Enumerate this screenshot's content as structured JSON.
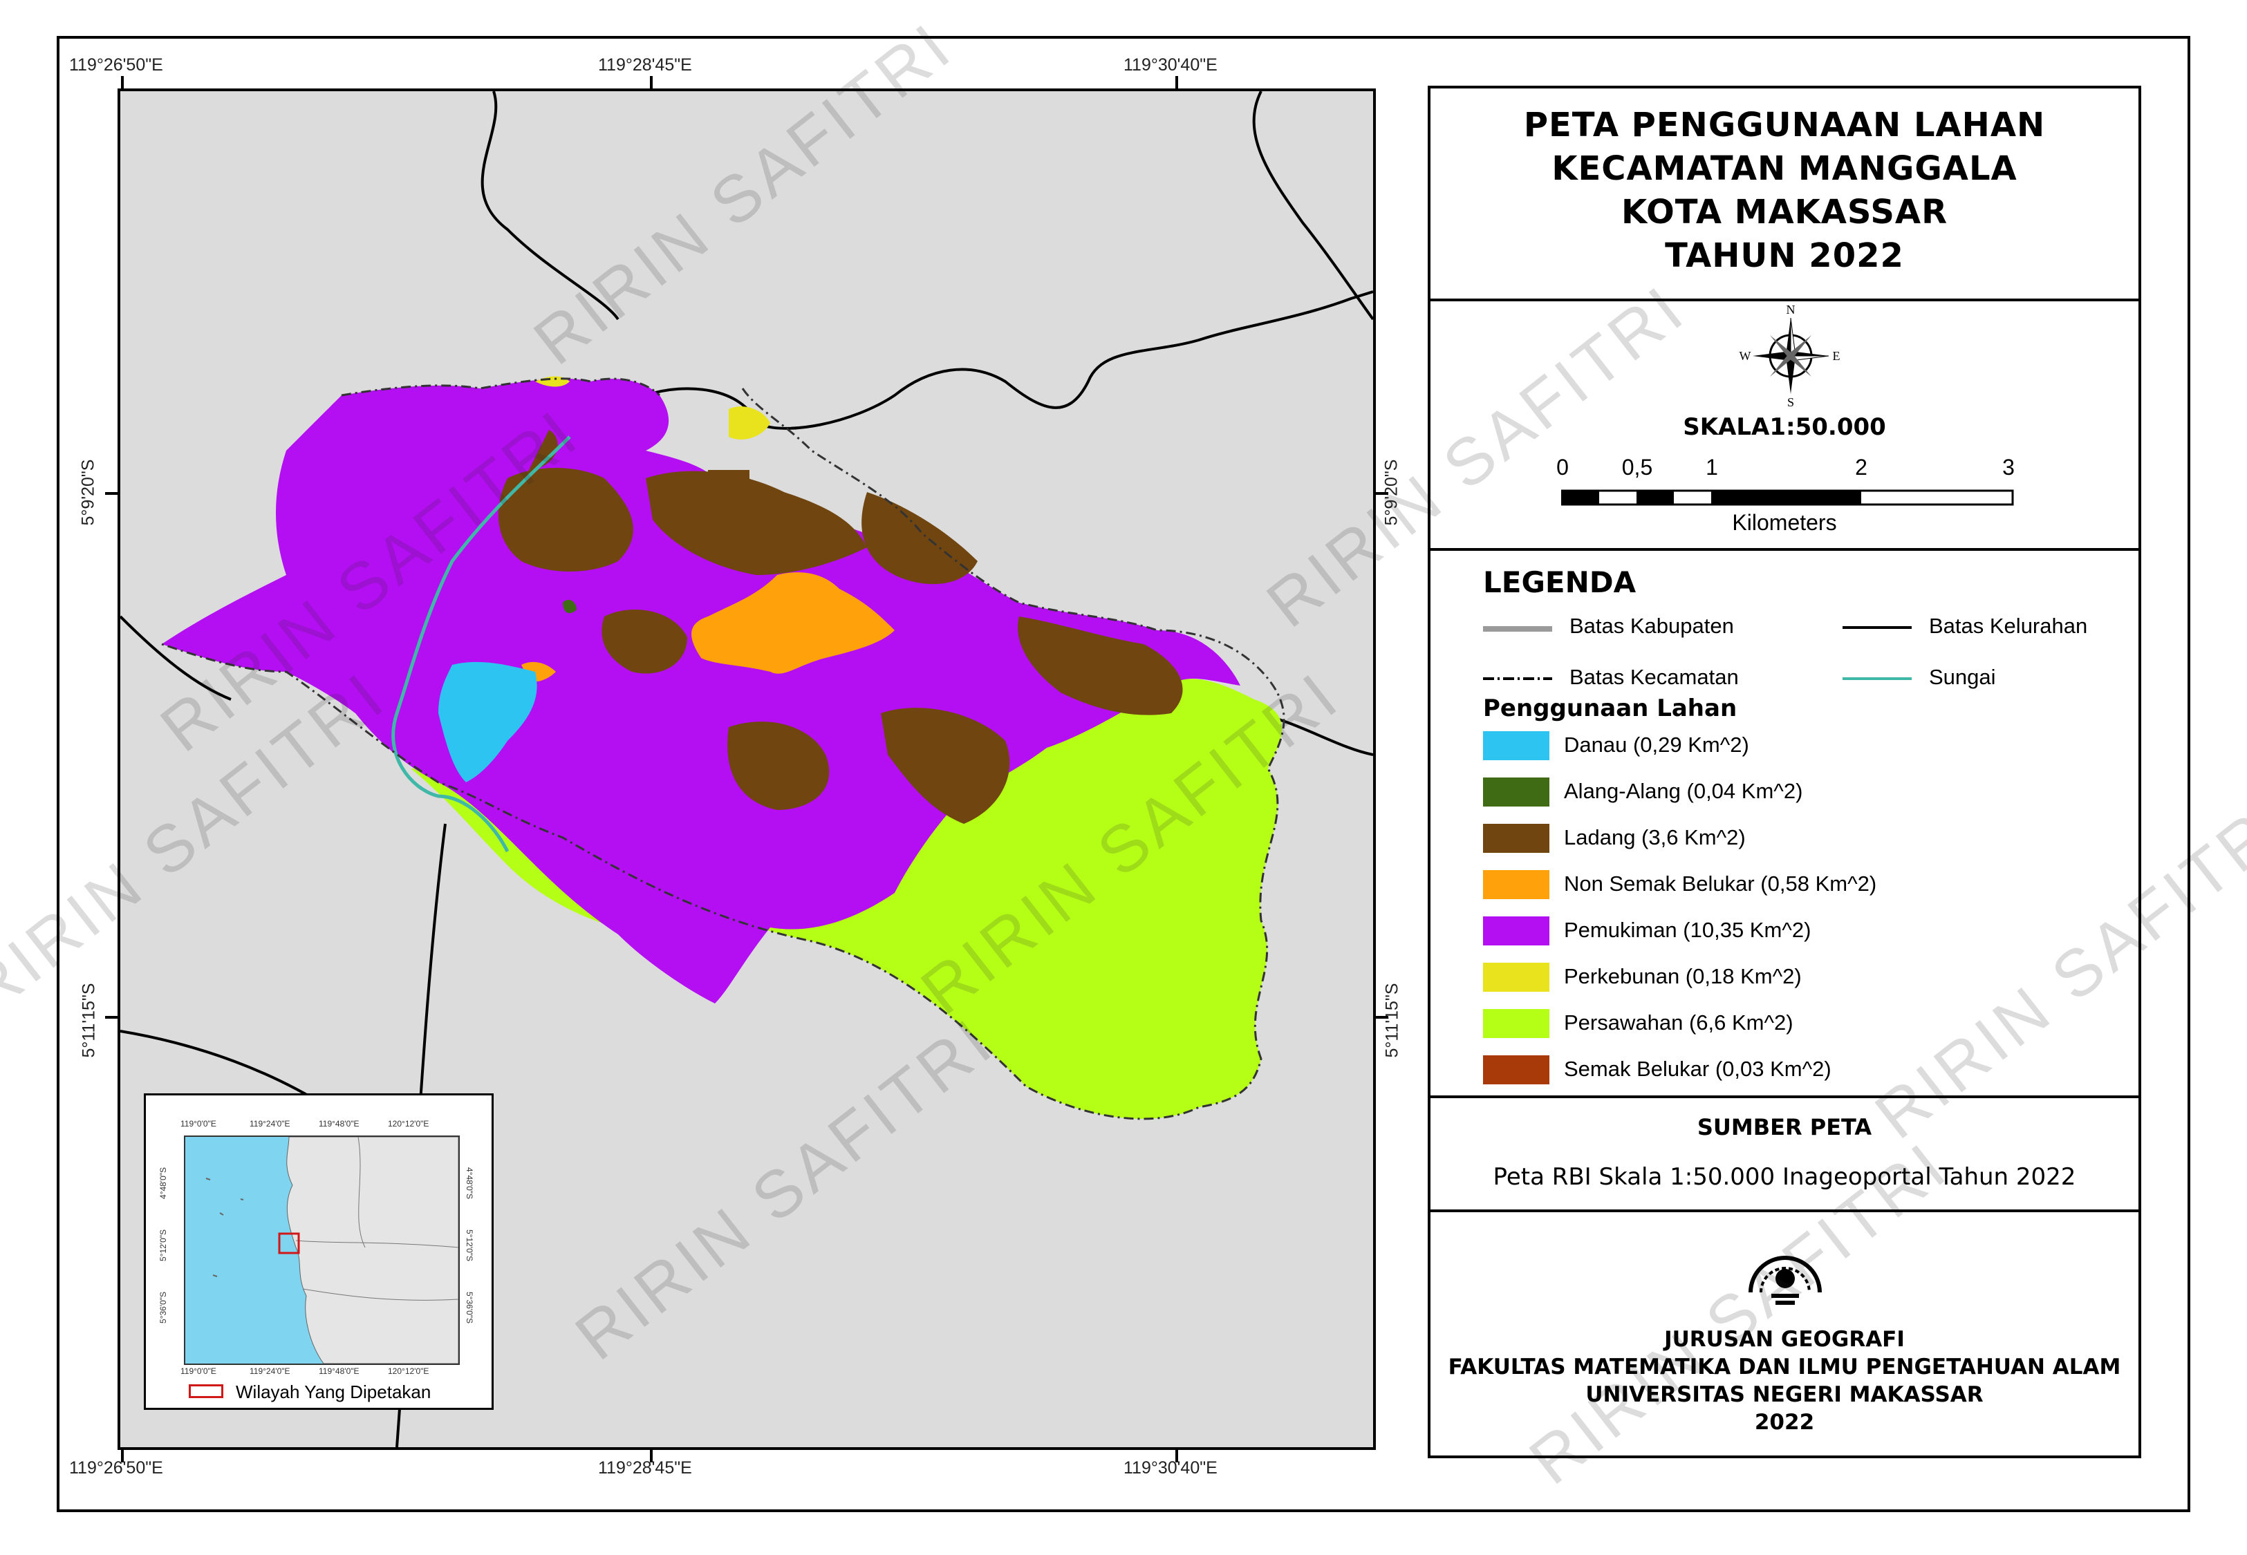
{
  "map": {
    "coords_top": [
      "119°26'50\"E",
      "119°28'45\"E",
      "119°30'40\"E"
    ],
    "coords_bottom": [
      "119°26'50\"E",
      "119°28'45\"E",
      "119°30'40\"E"
    ],
    "coords_left": [
      "5°9'20\"S",
      "5°11'15\"S"
    ],
    "coords_right": [
      "5°9'20\"S",
      "5°11'15\"S"
    ]
  },
  "title": {
    "lines": [
      "PETA PENGGUNAAN LAHAN",
      "KECAMATAN MANGGALA",
      "KOTA MAKASSAR",
      "TAHUN 2022"
    ]
  },
  "north_arrow": {
    "icon": "compass-rose-icon",
    "n": "N",
    "s": "S",
    "e": "E",
    "w": "W"
  },
  "scale": {
    "title": "SKALA1:50.000",
    "ticks": [
      "0",
      "0,5",
      "1",
      "2",
      "3"
    ],
    "unit": "Kilometers"
  },
  "legend": {
    "title": "LEGENDA",
    "lines": [
      {
        "label": "Batas Kabupaten",
        "color": "#9a9a9a"
      },
      {
        "label": "Batas Kelurahan",
        "color": "#000000"
      },
      {
        "label": "Batas Kecamatan",
        "color": "#000000"
      },
      {
        "label": "Sungai",
        "color": "#3fb8a8"
      }
    ],
    "subtitle": "Penggunaan Lahan",
    "items": [
      {
        "label": "Danau (0,29 Km^2)",
        "color": "#2ec4f1"
      },
      {
        "label": "Alang-Alang (0,04 Km^2)",
        "color": "#3e6b14"
      },
      {
        "label": "Ladang (3,6 Km^2)",
        "color": "#704510"
      },
      {
        "label": "Non Semak Belukar (0,58 Km^2)",
        "color": "#ffa10a"
      },
      {
        "label": "Pemukiman (10,35 Km^2)",
        "color": "#b40ef2"
      },
      {
        "label": "Perkebunan (0,18 Km^2)",
        "color": "#e8e31c"
      },
      {
        "label": "Persawahan (6,6 Km^2)",
        "color": "#b5ff17"
      },
      {
        "label": "Semak Belukar (0,03 Km^2)",
        "color": "#a83a0a"
      }
    ]
  },
  "source": {
    "title": "SUMBER PETA",
    "text": "Peta RBI Skala 1:50.000 Inageoportal Tahun 2022"
  },
  "institution": {
    "logo": "unm-logo",
    "lines": [
      "JURUSAN GEOGRAFI",
      "FAKULTAS MATEMATIKA DAN ILMU PENGETAHUAN ALAM",
      "UNIVERSITAS NEGERI MAKASSAR",
      "2022"
    ]
  },
  "inset": {
    "coords_top": [
      "119°0'0\"E",
      "119°24'0\"E",
      "119°48'0\"E",
      "120°12'0\"E"
    ],
    "coords_bottom": [
      "119°0'0\"E",
      "119°24'0\"E",
      "119°48'0\"E",
      "120°12'0\"E"
    ],
    "coords_left": [
      "4°48'0\"S",
      "5°12'0\"S",
      "5°36'0\"S"
    ],
    "coords_right": [
      "4°48'0\"S",
      "5°12'0\"S",
      "5°36'0\"S"
    ],
    "legend_label": "Wilayah Yang Dipetakan",
    "legend_color": "#d01818"
  },
  "watermark": "RIRIN SAFITRI"
}
